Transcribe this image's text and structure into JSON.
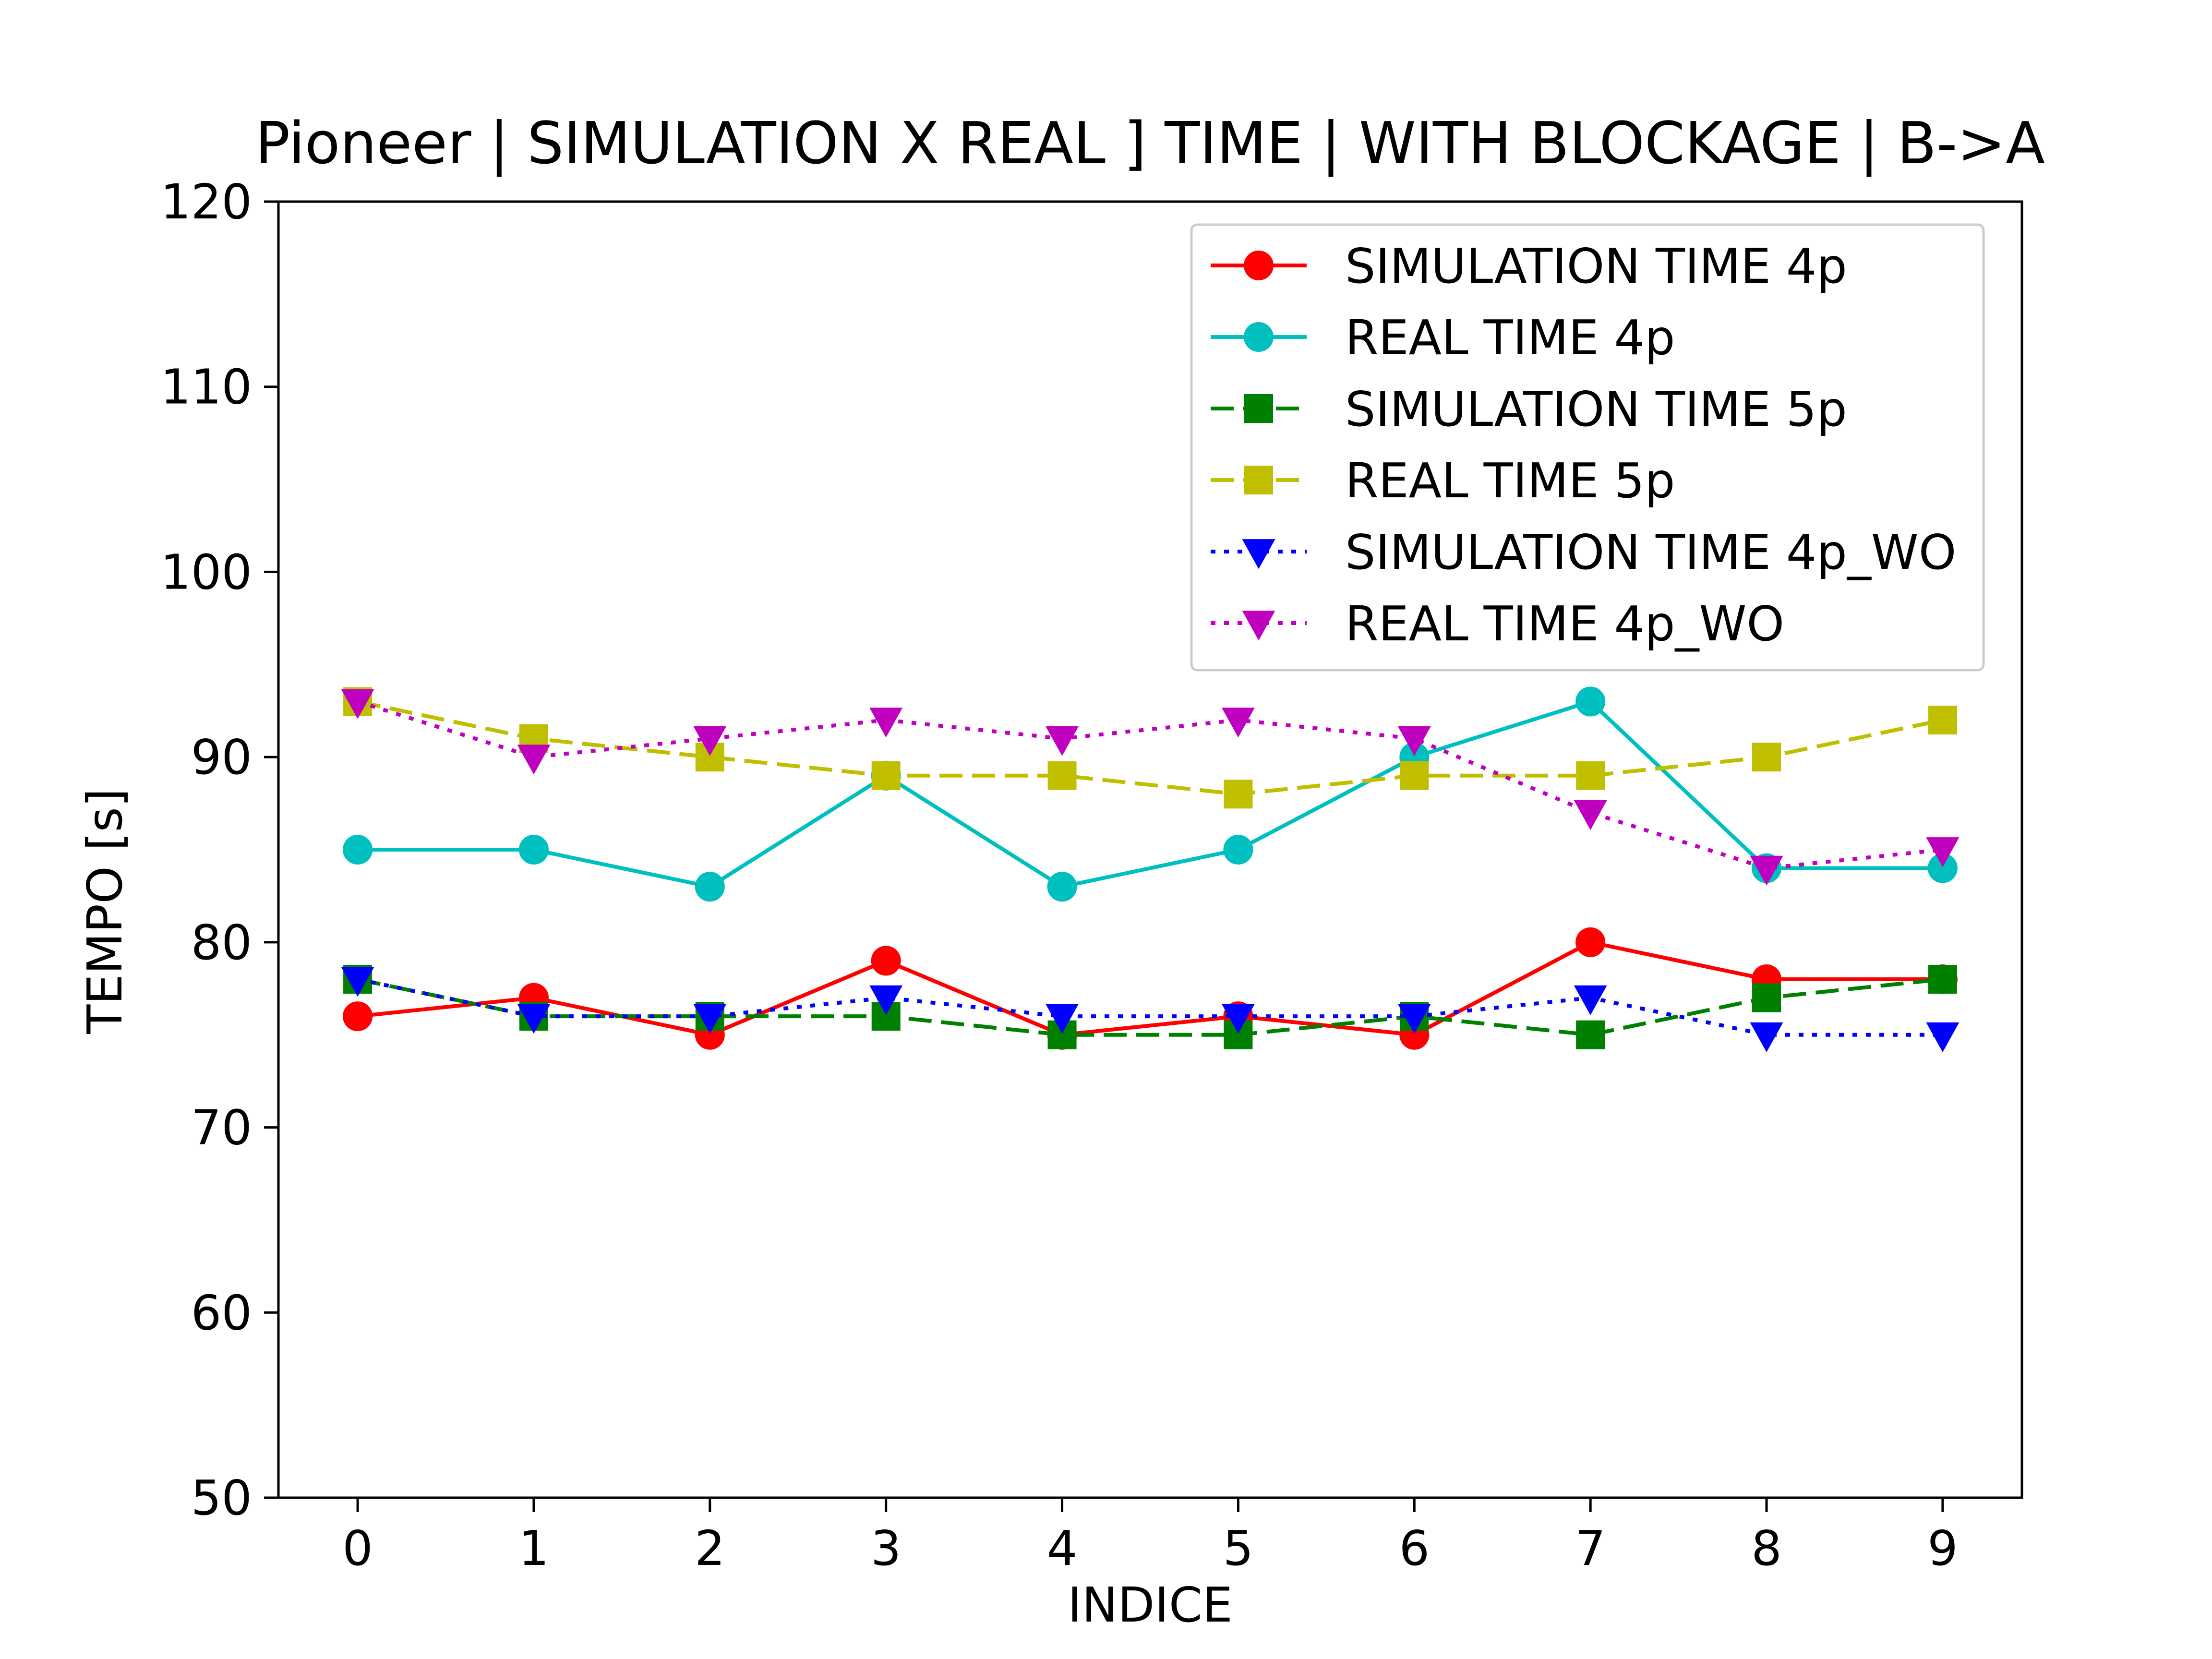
{
  "chart_data": {
    "type": "line",
    "title": "Pioneer |  SIMULATION X REAL ] TIME | WITH BLOCKAGE | B->A",
    "xlabel": "INDICE",
    "ylabel": "TEMPO [s]",
    "x": [
      0,
      1,
      2,
      3,
      4,
      5,
      6,
      7,
      8,
      9
    ],
    "xlim": [
      -0.45,
      9.45
    ],
    "ylim": [
      50,
      120
    ],
    "yticks": [
      50,
      60,
      70,
      80,
      90,
      100,
      110,
      120
    ],
    "grid": false,
    "legend_position": "upper right",
    "series": [
      {
        "name": "SIMULATION TIME 4p",
        "color": "#ff0000",
        "marker": "circle",
        "dash": "solid",
        "values": [
          76,
          77,
          75,
          79,
          75,
          76,
          75,
          80,
          78,
          78
        ]
      },
      {
        "name": "REAL TIME 4p",
        "color": "#00bfbf",
        "marker": "circle",
        "dash": "solid",
        "values": [
          85,
          85,
          83,
          89,
          83,
          85,
          90,
          93,
          84,
          84
        ]
      },
      {
        "name": "SIMULATION TIME 5p",
        "color": "#008000",
        "marker": "square",
        "dash": "dashed",
        "values": [
          78,
          76,
          76,
          76,
          75,
          75,
          76,
          75,
          77,
          78
        ]
      },
      {
        "name": "REAL TIME 5p",
        "color": "#bfbf00",
        "marker": "square",
        "dash": "dashed",
        "values": [
          93,
          91,
          90,
          89,
          89,
          88,
          89,
          89,
          90,
          92
        ]
      },
      {
        "name": "SIMULATION TIME 4p_WO",
        "color": "#0000ff",
        "marker": "triangle-down",
        "dash": "dotted",
        "values": [
          78,
          76,
          76,
          77,
          76,
          76,
          76,
          77,
          75,
          75
        ]
      },
      {
        "name": "REAL TIME 4p_WO",
        "color": "#bf00bf",
        "marker": "triangle-down",
        "dash": "dotted",
        "values": [
          93,
          90,
          91,
          92,
          91,
          92,
          91,
          87,
          84,
          85
        ]
      }
    ]
  }
}
